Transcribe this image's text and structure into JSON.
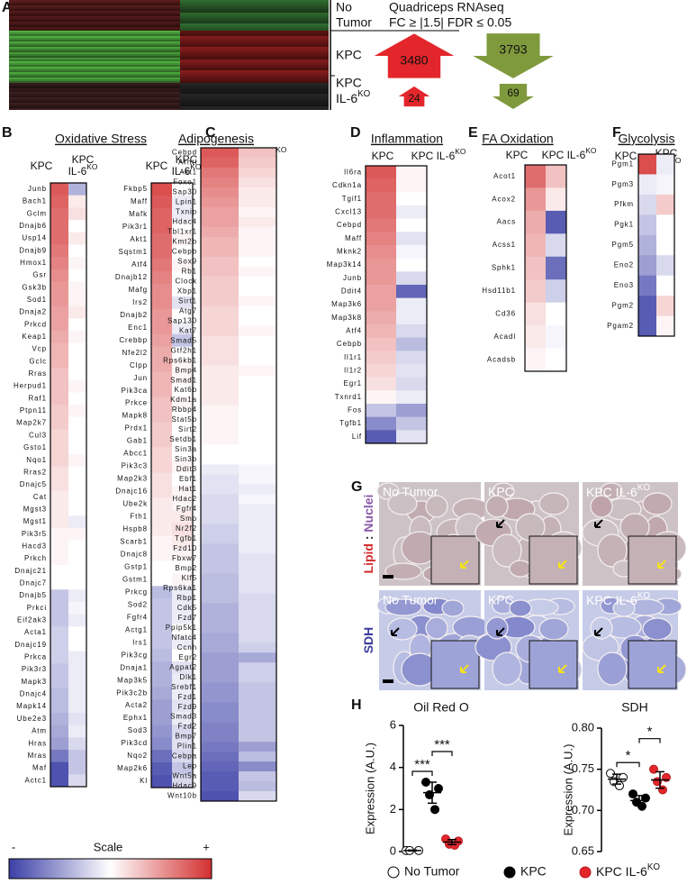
{
  "panel_a": {
    "label": "A",
    "header": [
      "Quadriceps RNAseq",
      "FC ≥ |1.5| FDR ≤ 0.05"
    ],
    "rows": [
      {
        "lines": [
          "No",
          "Tumor"
        ]
      },
      {
        "lines": [
          "KPC"
        ],
        "up": 3480,
        "down": 3793
      },
      {
        "lines": [
          "KPC",
          {
            "text": "IL-6",
            "sup": "KO"
          }
        ],
        "up": 24,
        "down": 69
      }
    ],
    "up_color": "#e3262b",
    "down_color": "#7f9a3c"
  },
  "heatmaps": [
    {
      "label": "B",
      "title": "Oxidative Stress",
      "blocks": [
        {
          "headers": [
            [
              "KPC"
            ],
            [
              "KPC",
              {
                "text": "IL-6",
                "sup": "KO"
              }
            ]
          ],
          "genes": [
            "Junb",
            "Bach1",
            "Gclm",
            "Dnajb6",
            "Usp14",
            "Dnajb9",
            "Hmox1",
            "Gsr",
            "Gsk3b",
            "Sod1",
            "Dnaja2",
            "Prkcd",
            "Keap1",
            "Vcp",
            "Gclc",
            "Rras",
            "Herpud1",
            "Raf1",
            "Ptpn11",
            "Map2k7",
            "Cul3",
            "Gsto1",
            "Nqo1",
            "Rras2",
            "Dnajc5",
            "Cat",
            "Mgst3",
            "Mgst1",
            "Pik3r5",
            "Hacd3",
            "Prkch",
            "Dnajc21",
            "Dnajc7",
            "Dnajb5",
            "Prkci",
            "Eif2ak3",
            "Acta1",
            "Dnajc19",
            "Prkca",
            "Pik3r3",
            "Mapk3",
            "Dnajc4",
            "Mapk14",
            "Ube2e3",
            "Atm",
            "Hras",
            "Mras",
            "Maf",
            "Actc1"
          ],
          "kpc": [
            0.8,
            0.75,
            0.7,
            0.7,
            0.7,
            0.65,
            0.6,
            0.55,
            0.5,
            0.5,
            0.45,
            0.45,
            0.4,
            0.35,
            0.35,
            0.3,
            0.3,
            0.3,
            0.25,
            0.25,
            0.2,
            0.2,
            0.2,
            0.15,
            0.15,
            0.1,
            0.1,
            0.1,
            0.05,
            0.05,
            0.05,
            0,
            0,
            -0.3,
            -0.3,
            -0.3,
            -0.25,
            -0.25,
            -0.25,
            -0.3,
            -0.3,
            -0.35,
            -0.35,
            -0.4,
            -0.45,
            -0.5,
            -0.7,
            -0.9,
            -0.9
          ],
          "ko": [
            -0.4,
            0.1,
            0.15,
            0,
            0.1,
            0,
            0.05,
            0,
            0.05,
            0.05,
            0.1,
            0,
            0.05,
            0,
            0,
            0,
            0.05,
            0,
            0.05,
            0,
            0,
            0,
            0.05,
            0,
            0,
            0,
            0,
            -0.1,
            0.05,
            0,
            0,
            0,
            0,
            -0.1,
            -0.05,
            -0.1,
            0,
            0,
            -0.1,
            -0.1,
            -0.1,
            -0.1,
            -0.1,
            -0.15,
            -0.1,
            -0.2,
            -0.3,
            -0.3,
            -0.2
          ]
        },
        {
          "headers": [
            [
              "KPC"
            ],
            [
              "KPC",
              {
                "text": "IL-6",
                "sup": "KO"
              }
            ]
          ],
          "genes": [
            "Fkbp5",
            "Maff",
            "Mafk",
            "Pik3r1",
            "Akt1",
            "Sqstm1",
            "Atf4",
            "Dnajb12",
            "Mafg",
            "Irs2",
            "Dnajb2",
            "Enc1",
            "Crebbp",
            "Nfe2l2",
            "Clpp",
            "Jun",
            "Pik3ca",
            "Prkce",
            "Mapk8",
            "Prdx1",
            "Gab1",
            "Abcc1",
            "Pik3c3",
            "Map2k3",
            "Dnajc16",
            "Ube2k",
            "Fth1",
            "Hspb8",
            "Scarb1",
            "Dnajc8",
            "Gstp1",
            "Gstm1",
            "Prkcg",
            "Sod2",
            "Fgfr4",
            "Actg1",
            "Irs1",
            "Pik3cg",
            "Dnaja1",
            "Map3k5",
            "Pik3c2b",
            "Acta2",
            "Ephx1",
            "Sod3",
            "Pik3cd",
            "Nqo2",
            "Map2k6",
            "Kl"
          ],
          "kpc": [
            0.85,
            0.8,
            0.75,
            0.75,
            0.7,
            0.7,
            0.65,
            0.6,
            0.55,
            0.55,
            0.5,
            0.5,
            0.45,
            0.4,
            0.4,
            0.35,
            0.35,
            0.3,
            0.3,
            0.25,
            0.25,
            0.2,
            0.2,
            0.15,
            0.15,
            0.1,
            0.1,
            0.1,
            0.05,
            0.05,
            0,
            0,
            -0.35,
            -0.3,
            -0.3,
            -0.3,
            -0.3,
            -0.35,
            -0.4,
            -0.4,
            -0.45,
            -0.5,
            -0.5,
            -0.55,
            -0.6,
            -0.75,
            -0.85,
            -0.9
          ],
          "ko": [
            0,
            -0.1,
            -0.1,
            0,
            0.05,
            0,
            0.05,
            0,
            0,
            -0.15,
            0,
            -0.1,
            -0.3,
            0,
            0.05,
            0.05,
            0,
            0.05,
            0,
            0,
            0,
            0,
            0.05,
            0,
            0.05,
            0.05,
            0.1,
            0.15,
            0.1,
            0.05,
            0,
            0.05,
            -0.1,
            -0.1,
            -0.1,
            0,
            -0.1,
            0,
            -0.15,
            -0.1,
            -0.1,
            -0.15,
            -0.1,
            -0.2,
            -0.15,
            -0.2,
            -0.3,
            -0.2
          ]
        }
      ]
    },
    {
      "label": "C",
      "title": "Adipogenesis",
      "blocks": [
        {
          "headers": [
            [
              "KPC"
            ],
            [
              {
                "text": "KPC IL-6",
                "sup": "KO"
              }
            ]
          ],
          "genes": [
            "Cebpd",
            "Arntl",
            "Akt1",
            "Foxo1",
            "Sap30",
            "Lpin1",
            "Txnip",
            "Hdac4",
            "Tbl1xr1",
            "Kmt2b",
            "Cebpb",
            "Sox9",
            "Rb1",
            "Clock",
            "Xbp1",
            "Sirt1",
            "Atg7",
            "Sap130",
            "Kat7",
            "Smad5",
            "Gtf2h1",
            "Rps6kb1",
            "Bmp4",
            "Smad1",
            "Kat6b",
            "Kdm1a",
            "Rbbp4",
            "Stat5b",
            "Sirt2",
            "Setdb1",
            "Sin3a",
            "Sin3b",
            "Ddit3",
            "Ebf1",
            "Hat1",
            "Hdac2",
            "Fgfr4",
            "Smo",
            "Nr2f2",
            "Tgfb1",
            "Fzd10",
            "Fbxw7",
            "Bmp2",
            "Klf5",
            "Rps6ka1",
            "Rbp1",
            "Cdk5",
            "Fzd7",
            "Ppip5k1",
            "Nfatc4",
            "Ccnh",
            "Egr2",
            "Agpat2",
            "Dlk1",
            "Srebf1",
            "Fzd1",
            "Fzd9",
            "Smad3",
            "Fzd2",
            "Bmp7",
            "Plin1",
            "Cebpa",
            "Lep",
            "Wnt5a",
            "Hdac9",
            "Wnt10b"
          ],
          "kpc": [
            0.8,
            0.75,
            0.65,
            0.6,
            0.55,
            0.5,
            0.45,
            0.45,
            0.4,
            0.35,
            0.35,
            0.3,
            0.3,
            0.25,
            0.25,
            0.25,
            0.2,
            0.2,
            0.2,
            0.15,
            0.15,
            0.15,
            0.1,
            0.1,
            0.1,
            0.1,
            0.05,
            0.05,
            0.05,
            0.05,
            0,
            0,
            -0.1,
            -0.15,
            -0.15,
            -0.2,
            -0.2,
            -0.2,
            -0.25,
            -0.25,
            -0.3,
            -0.3,
            -0.3,
            -0.35,
            -0.35,
            -0.35,
            -0.4,
            -0.4,
            -0.4,
            -0.45,
            -0.45,
            -0.5,
            -0.5,
            -0.5,
            -0.55,
            -0.55,
            -0.6,
            -0.6,
            -0.65,
            -0.65,
            -0.7,
            -0.75,
            -0.8,
            -0.85,
            -0.85,
            -0.9
          ],
          "ko": [
            0.3,
            0.25,
            0.2,
            0.15,
            0.1,
            0.1,
            0.05,
            0.1,
            0.05,
            0.05,
            0.05,
            0,
            0.05,
            0,
            0,
            0.05,
            0,
            0,
            0.05,
            0,
            0,
            0,
            0.05,
            0,
            0,
            0,
            0,
            0,
            0,
            0,
            0,
            0,
            -0.05,
            -0.05,
            -0.1,
            -0.05,
            -0.1,
            -0.1,
            -0.1,
            -0.1,
            -0.1,
            -0.15,
            -0.15,
            -0.15,
            -0.15,
            -0.2,
            -0.2,
            -0.2,
            -0.2,
            -0.2,
            -0.25,
            -0.45,
            -0.25,
            -0.25,
            -0.3,
            -0.3,
            -0.3,
            -0.3,
            -0.3,
            -0.3,
            -0.5,
            -0.35,
            -0.6,
            -0.3,
            -0.35,
            -0.2
          ]
        }
      ]
    },
    {
      "label": "D",
      "title": "Inflammation",
      "blocks": [
        {
          "headers": [
            [
              "KPC"
            ],
            [
              {
                "text": "KPC IL-6",
                "sup": "KO"
              }
            ]
          ],
          "genes": [
            "Il6ra",
            "Cdkn1a",
            "Tgif1",
            "Cxcl13",
            "Cebpd",
            "Maff",
            "Mknk2",
            "Map3k14",
            "Junb",
            "Ddit4",
            "Map3k6",
            "Map3k8",
            "Atf4",
            "Cebpb",
            "Il1r1",
            "Il1r2",
            "Egr1",
            "Txnrd1",
            "Fos",
            "Tgfb1",
            "Lif"
          ],
          "kpc": [
            0.8,
            0.75,
            0.7,
            0.7,
            0.65,
            0.6,
            0.55,
            0.5,
            0.5,
            0.45,
            0.45,
            0.4,
            0.35,
            0.3,
            0.25,
            0.2,
            0.15,
            0.05,
            -0.3,
            -0.6,
            -0.85
          ],
          "ko": [
            0.05,
            0.05,
            0,
            -0.1,
            0,
            -0.15,
            -0.05,
            0,
            -0.2,
            -0.8,
            -0.1,
            -0.1,
            -0.2,
            -0.35,
            -0.2,
            -0.15,
            -0.2,
            -0.1,
            -0.5,
            -0.3,
            -0.15
          ]
        }
      ]
    },
    {
      "label": "E",
      "title": "FA Oxidation",
      "blocks": [
        {
          "headers": [
            [
              "KPC"
            ],
            [
              {
                "text": "KPC IL-6",
                "sup": "KO"
              }
            ]
          ],
          "genes": [
            "Acot1",
            "Acox2",
            "Aacs",
            "Acss1",
            "Sphk1",
            "Hsd11b1",
            "Cd36",
            "Acadl",
            "Acadsb"
          ],
          "kpc": [
            0.7,
            0.5,
            0.4,
            0.35,
            0.3,
            0.25,
            0.15,
            0.1,
            0.05
          ],
          "ko": [
            0.3,
            0.1,
            -0.85,
            -0.2,
            -0.75,
            -0.25,
            0,
            -0.05,
            0
          ]
        }
      ]
    },
    {
      "label": "F",
      "title": "Glycolysis",
      "blocks": [
        {
          "headers": [
            [
              "KPC"
            ],
            [
              "KPC",
              {
                "text": "IL-6",
                "sup": "KO"
              }
            ]
          ],
          "genes": [
            "Pgm1",
            "Pgm3",
            "Pfkm",
            "Pgk1",
            "Pgm5",
            "Eno2",
            "Eno3",
            "Pgm2",
            "Pgam2"
          ],
          "kpc": [
            0.85,
            -0.1,
            -0.2,
            -0.3,
            -0.4,
            -0.5,
            -0.7,
            -0.85,
            -0.85
          ],
          "ko": [
            -0.1,
            -0.05,
            0.25,
            0,
            0,
            -0.2,
            0,
            0.2,
            0.05
          ]
        }
      ]
    }
  ],
  "scale": {
    "labels": [
      "-",
      "Scale",
      "+"
    ],
    "colors": [
      "#3b3fa6",
      "#ffffff",
      "#d32f2f"
    ]
  },
  "panel_g": {
    "label": "G",
    "columns": [
      "No Tumor",
      "KPC",
      {
        "text": "KPC IL-6",
        "sup": "KO"
      }
    ],
    "rows": [
      [
        "Lipid",
        " : ",
        "Nuclei"
      ],
      [
        "SDH"
      ]
    ],
    "row_colors": [
      [
        "#d32f2f",
        "#222222",
        "#8a5aa8"
      ],
      [
        "#3a3a9a"
      ]
    ]
  },
  "panel_h": {
    "label": "H"
  },
  "chart_data": [
    {
      "type": "dot",
      "title": "Oil Red O",
      "ylabel": "Expression (A.U.)",
      "ylim": [
        0,
        6
      ],
      "yticks": [
        0,
        2,
        4,
        6
      ],
      "significance": [
        "***",
        "***"
      ],
      "series": [
        {
          "name": "No Tumor",
          "color": "#ffffff",
          "values": [
            0.05,
            0.05,
            0.05
          ],
          "mean": 0.05,
          "error": 0.02
        },
        {
          "name": "KPC",
          "color": "#000000",
          "values": [
            3.3,
            3.0,
            2.7,
            2.0
          ],
          "mean": 2.8,
          "error": 0.5
        },
        {
          "name": {
            "text": "KPC IL-6",
            "sup": "KO"
          },
          "color": "#e3262b",
          "values": [
            0.6,
            0.5,
            0.35,
            0.3
          ],
          "mean": 0.45,
          "error": 0.12
        }
      ]
    },
    {
      "type": "dot",
      "title": "SDH",
      "ylabel": "Expression (A.U.)",
      "ylim": [
        0.65,
        0.8
      ],
      "yticks": [
        0.65,
        {
          "value": 0.7,
          "label": "0.70"
        },
        0.75,
        {
          "value": 0.8,
          "label": "0.80"
        }
      ],
      "significance": [
        "*",
        "*"
      ],
      "series": [
        {
          "color": "#ffffff",
          "values": [
            0.745,
            0.74,
            0.735,
            0.73
          ],
          "mean": 0.738,
          "error": 0.006
        },
        {
          "color": "#000000",
          "values": [
            0.72,
            0.715,
            0.71,
            0.705
          ],
          "mean": 0.712,
          "error": 0.006
        },
        {
          "color": "#e3262b",
          "values": [
            0.75,
            0.74,
            0.735,
            0.725
          ],
          "mean": 0.737,
          "error": 0.01
        }
      ]
    }
  ]
}
